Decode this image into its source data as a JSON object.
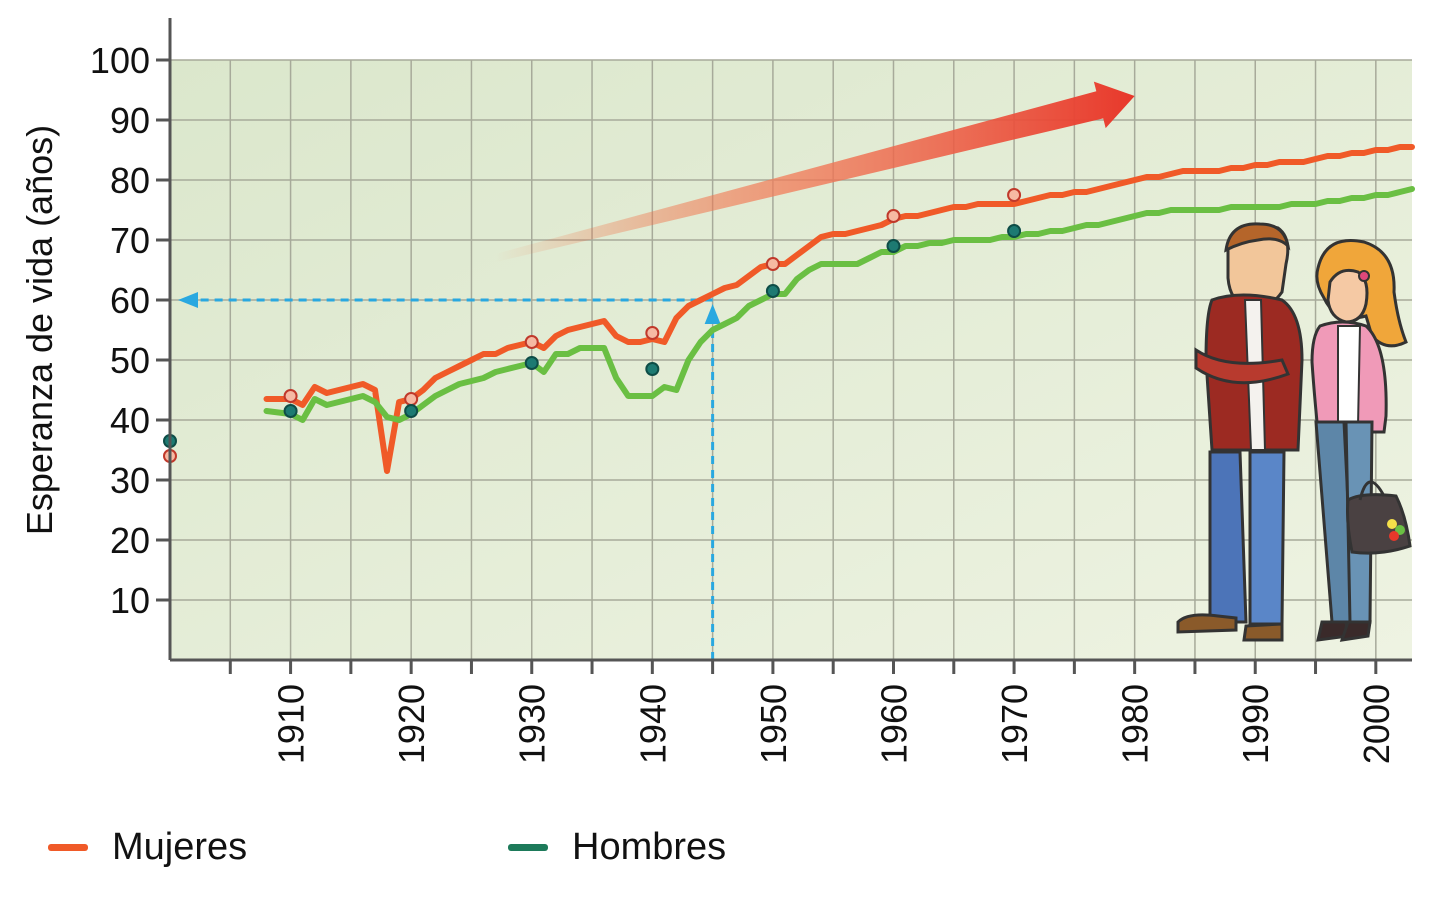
{
  "chart_data": {
    "type": "line",
    "ylabel": "Esperanza de vida (años)",
    "ylim": [
      0,
      100
    ],
    "xlim": [
      1900,
      2003
    ],
    "y_ticks": [
      "10",
      "20",
      "30",
      "40",
      "50",
      "60",
      "70",
      "80",
      "90",
      "100"
    ],
    "x_ticks": [
      "1910",
      "1920",
      "1930",
      "1940",
      "1950",
      "1960",
      "1970",
      "1980",
      "1990",
      "2000"
    ],
    "grid": true,
    "legend_position": "bottom",
    "series": [
      {
        "name": "Mujeres",
        "color": "#f05a28",
        "x": [
          1908,
          1910,
          1911,
          1912,
          1913,
          1914,
          1915,
          1916,
          1917,
          1918,
          1919,
          1920,
          1921,
          1922,
          1923,
          1924,
          1925,
          1926,
          1927,
          1928,
          1929,
          1930,
          1931,
          1932,
          1933,
          1934,
          1935,
          1936,
          1937,
          1938,
          1939,
          1940,
          1941,
          1942,
          1943,
          1944,
          1945,
          1946,
          1947,
          1948,
          1949,
          1950,
          1951,
          1952,
          1953,
          1954,
          1955,
          1956,
          1957,
          1958,
          1959,
          1960,
          1961,
          1962,
          1963,
          1964,
          1965,
          1966,
          1967,
          1968,
          1969,
          1970,
          1971,
          1972,
          1973,
          1974,
          1975,
          1976,
          1977,
          1978,
          1979,
          1980,
          1981,
          1982,
          1983,
          1984,
          1985,
          1986,
          1987,
          1988,
          1989,
          1990,
          1991,
          1992,
          1993,
          1994,
          1995,
          1996,
          1997,
          1998,
          1999,
          2000,
          2001,
          2002,
          2003
        ],
        "values": [
          43.5,
          43.5,
          42.5,
          45.5,
          44.5,
          45,
          45.5,
          46,
          45,
          31.5,
          43,
          43.5,
          45,
          47,
          48,
          49,
          50,
          51,
          51,
          52,
          52.5,
          53,
          52,
          54,
          55,
          55.5,
          56,
          56.5,
          54,
          53,
          53,
          53.5,
          53,
          57,
          59,
          60,
          61,
          62,
          62.5,
          64,
          65.5,
          66,
          66,
          67.5,
          69,
          70.5,
          71,
          71,
          71.5,
          72,
          72.5,
          73.5,
          74,
          74,
          74.5,
          75,
          75.5,
          75.5,
          76,
          76,
          76,
          76,
          76.5,
          77,
          77.5,
          77.5,
          78,
          78,
          78.5,
          79,
          79.5,
          80,
          80.5,
          80.5,
          81,
          81.5,
          81.5,
          81.5,
          81.5,
          82,
          82,
          82.5,
          82.5,
          83,
          83,
          83,
          83.5,
          84,
          84,
          84.5,
          84.5,
          85,
          85,
          85.5,
          85.5
        ]
      },
      {
        "name": "Hombres",
        "color": "#6abf43",
        "x": [
          1908,
          1910,
          1911,
          1912,
          1913,
          1914,
          1915,
          1916,
          1917,
          1918,
          1919,
          1920,
          1921,
          1922,
          1923,
          1924,
          1925,
          1926,
          1927,
          1928,
          1929,
          1930,
          1931,
          1932,
          1933,
          1934,
          1935,
          1936,
          1937,
          1938,
          1939,
          1940,
          1941,
          1942,
          1943,
          1944,
          1945,
          1946,
          1947,
          1948,
          1949,
          1950,
          1951,
          1952,
          1953,
          1954,
          1955,
          1956,
          1957,
          1958,
          1959,
          1960,
          1961,
          1962,
          1963,
          1964,
          1965,
          1966,
          1967,
          1968,
          1969,
          1970,
          1971,
          1972,
          1973,
          1974,
          1975,
          1976,
          1977,
          1978,
          1979,
          1980,
          1981,
          1982,
          1983,
          1984,
          1985,
          1986,
          1987,
          1988,
          1989,
          1990,
          1991,
          1992,
          1993,
          1994,
          1995,
          1996,
          1997,
          1998,
          1999,
          2000,
          2001,
          2002,
          2003
        ],
        "values": [
          41.5,
          41,
          40,
          43.5,
          42.5,
          43,
          43.5,
          44,
          43,
          40.5,
          40,
          41,
          42.5,
          44,
          45,
          46,
          46.5,
          47,
          48,
          48.5,
          49,
          49.5,
          48,
          51,
          51,
          52,
          52,
          52,
          47,
          44,
          44,
          44,
          45.5,
          45,
          50,
          53,
          55,
          56,
          57,
          59,
          60,
          61,
          61,
          63.5,
          65,
          66,
          66,
          66,
          66,
          67,
          68,
          68,
          69,
          69,
          69.5,
          69.5,
          70,
          70,
          70,
          70,
          70.5,
          70.5,
          71,
          71,
          71.5,
          71.5,
          72,
          72.5,
          72.5,
          73,
          73.5,
          74,
          74.5,
          74.5,
          75,
          75,
          75,
          75,
          75,
          75.5,
          75.5,
          75.5,
          75.5,
          75.5,
          76,
          76,
          76,
          76.5,
          76.5,
          77,
          77,
          77.5,
          77.5,
          78,
          78.5
        ]
      }
    ],
    "markers": [
      {
        "series": "Mujeres",
        "x": 1900,
        "y": 34
      },
      {
        "series": "Hombres",
        "x": 1900,
        "y": 36.5
      },
      {
        "series": "Mujeres",
        "x": 1910,
        "y": 44
      },
      {
        "series": "Hombres",
        "x": 1910,
        "y": 41.5
      },
      {
        "series": "Mujeres",
        "x": 1920,
        "y": 43.5
      },
      {
        "series": "Hombres",
        "x": 1920,
        "y": 41.5
      },
      {
        "series": "Mujeres",
        "x": 1930,
        "y": 53
      },
      {
        "series": "Hombres",
        "x": 1930,
        "y": 49.5
      },
      {
        "series": "Mujeres",
        "x": 1940,
        "y": 54.5
      },
      {
        "series": "Hombres",
        "x": 1940,
        "y": 48.5
      },
      {
        "series": "Mujeres",
        "x": 1950,
        "y": 66
      },
      {
        "series": "Hombres",
        "x": 1950,
        "y": 61.5
      },
      {
        "series": "Mujeres",
        "x": 1960,
        "y": 74
      },
      {
        "series": "Hombres",
        "x": 1960,
        "y": 69
      },
      {
        "series": "Mujeres",
        "x": 1970,
        "y": 77.5
      },
      {
        "series": "Hombres",
        "x": 1970,
        "y": 71.5
      }
    ],
    "reference": {
      "x": 1945,
      "y": 60,
      "color": "#29a8e0"
    },
    "trend_arrow": {
      "from": [
        1927,
        67
      ],
      "to": [
        1980,
        94
      ]
    }
  }
}
